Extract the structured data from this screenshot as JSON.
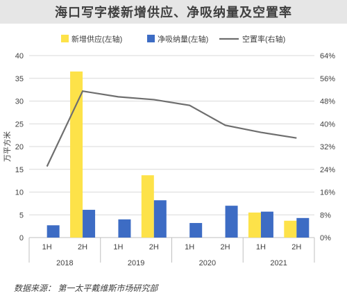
{
  "title": "海口写字楼新增供应、净吸纳量及空置率",
  "footnote": "数据来源： 第一太平戴维斯市场研究部",
  "colors": {
    "supply": "#fde249",
    "absorption": "#3d6cc4",
    "vacancy": "#6e6e6e",
    "grid": "#d9d9d9"
  },
  "chart_data": {
    "type": "bar",
    "title": "海口写字楼新增供应、净吸纳量及空置率",
    "categories": [
      "1H",
      "2H",
      "1H",
      "2H",
      "1H",
      "2H",
      "1H",
      "2H"
    ],
    "groups": [
      {
        "label": "2018"
      },
      {
        "label": "2019"
      },
      {
        "label": "2020"
      },
      {
        "label": "2021"
      }
    ],
    "series": [
      {
        "name": "新增供应(左轴)",
        "type": "bar",
        "axis": "left",
        "values": [
          0,
          36.5,
          0,
          13.7,
          0,
          0,
          5.5,
          3.7
        ]
      },
      {
        "name": "净吸纳量(左轴)",
        "type": "bar",
        "axis": "left",
        "values": [
          2.7,
          6.1,
          4.0,
          8.2,
          3.2,
          7.0,
          5.7,
          4.3
        ]
      },
      {
        "name": "空置率(右轴)",
        "type": "line",
        "axis": "right",
        "values": [
          0.25,
          0.515,
          0.495,
          0.485,
          0.465,
          0.395,
          0.37,
          0.35
        ]
      }
    ],
    "y_left": {
      "label": "万平方米",
      "min": 0,
      "max": 40,
      "ticks": [
        "0",
        "5",
        "10",
        "15",
        "20",
        "25",
        "30",
        "35",
        "40"
      ]
    },
    "y_right": {
      "min": 0,
      "max": 0.64,
      "ticks": [
        "0%",
        "8%",
        "16%",
        "24%",
        "32%",
        "40%",
        "48%",
        "56%",
        "64%"
      ]
    },
    "legend_position": "top",
    "grid": true
  }
}
